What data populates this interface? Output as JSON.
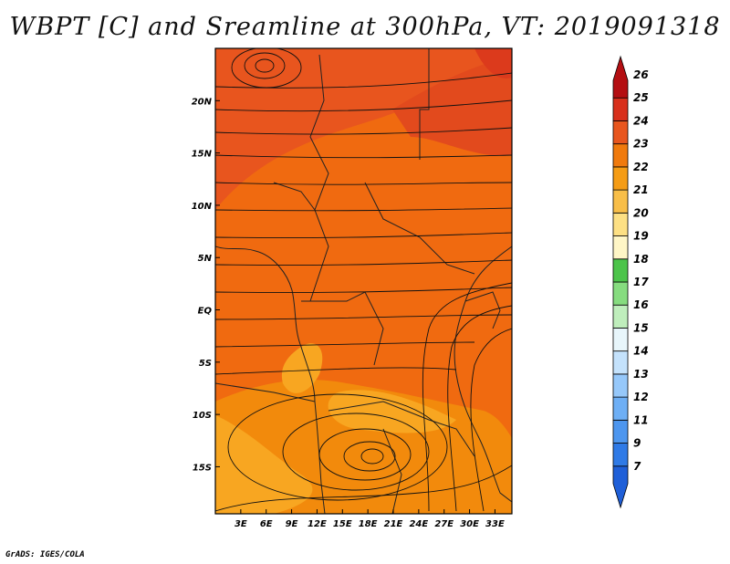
{
  "title": "WBPT [C] and Sreamline at 300hPa, VT: 2019091318",
  "credit": "GrADS: IGES/COLA",
  "map": {
    "lat_labels": [
      "20N",
      "15N",
      "10N",
      "5N",
      "EQ",
      "5S",
      "10S",
      "15S"
    ],
    "lat_values": [
      20,
      15,
      10,
      5,
      0,
      -5,
      -10,
      -15
    ],
    "lon_labels": [
      "3E",
      "6E",
      "9E",
      "12E",
      "15E",
      "18E",
      "21E",
      "24E",
      "27E",
      "30E",
      "33E"
    ],
    "lon_values": [
      3,
      6,
      9,
      12,
      15,
      18,
      21,
      24,
      27,
      30,
      33
    ],
    "lon_range": [
      0,
      35
    ],
    "lat_range": [
      -19.5,
      25
    ],
    "field_colors": {
      "c20": "#f8a621",
      "c21": "#f28a0c",
      "c22": "#f06a10",
      "c23": "#e8551e",
      "c24": "#dc3a1c"
    }
  },
  "colorbar": {
    "labels": [
      "7",
      "9",
      "11",
      "12",
      "13",
      "14",
      "15",
      "16",
      "17",
      "18",
      "19",
      "20",
      "21",
      "22",
      "23",
      "24",
      "25",
      "26"
    ],
    "colors": [
      "#1f5fd8",
      "#2f7ae6",
      "#4d96ef",
      "#6eaff5",
      "#96c8fa",
      "#c4e2fc",
      "#e8f6fb",
      "#bfeebc",
      "#86dc7f",
      "#4cc44a",
      "#fff6c6",
      "#fde084",
      "#f8be48",
      "#f59c15",
      "#f07a0d",
      "#e8561e",
      "#d8301c",
      "#b40f12"
    ]
  }
}
